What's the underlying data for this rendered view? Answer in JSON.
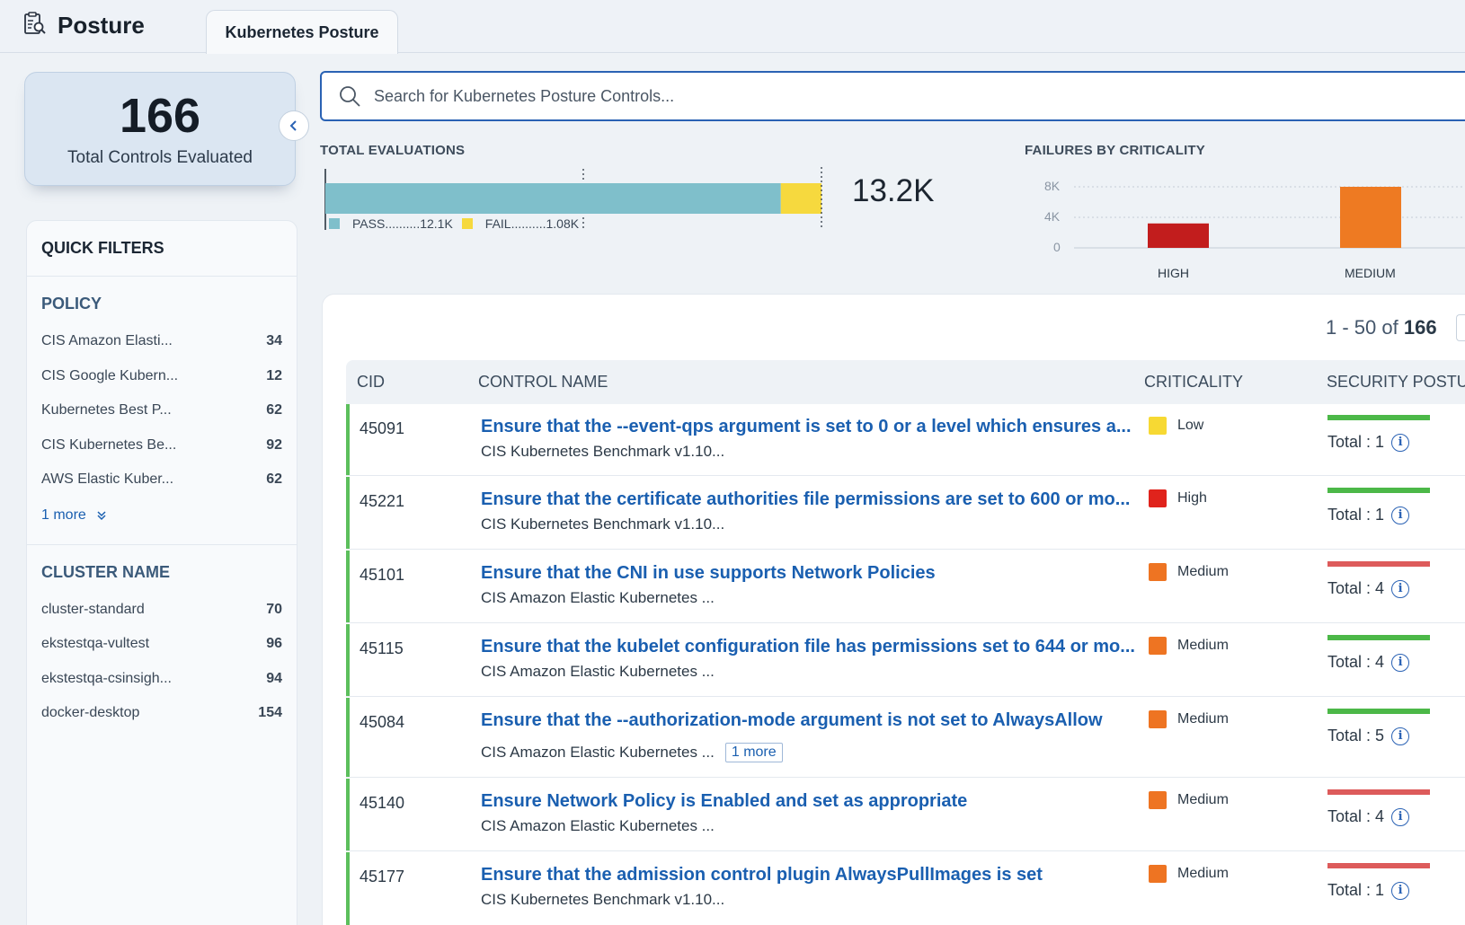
{
  "header": {
    "app_title": "Posture",
    "tab_label": "Kubernetes Posture"
  },
  "kpi": {
    "value": "166",
    "label": "Total Controls Evaluated"
  },
  "quick_filters": {
    "title": "QUICK FILTERS",
    "policy": {
      "title": "POLICY",
      "items": [
        {
          "label": "CIS Amazon Elasti...",
          "count": "34"
        },
        {
          "label": "CIS Google Kubern...",
          "count": "12"
        },
        {
          "label": "Kubernetes Best P...",
          "count": "62"
        },
        {
          "label": "CIS Kubernetes Be...",
          "count": "92"
        },
        {
          "label": "AWS Elastic Kuber...",
          "count": "62"
        }
      ],
      "more": "1 more"
    },
    "cluster": {
      "title": "CLUSTER NAME",
      "items": [
        {
          "label": "cluster-standard",
          "count": "70"
        },
        {
          "label": "ekstestqa-vultest",
          "count": "96"
        },
        {
          "label": "ekstestqa-csinsigh...",
          "count": "94"
        },
        {
          "label": "docker-desktop",
          "count": "154"
        }
      ]
    }
  },
  "search": {
    "placeholder": "Search for Kubernetes Posture Controls..."
  },
  "total_evaluations": {
    "title": "TOTAL EVALUATIONS",
    "total_label": "13.2K",
    "pass_label": "PASS..........12.1K",
    "fail_label": "FAIL..........1.08K",
    "pass_value": 12.1,
    "fail_value": 1.08,
    "colors": {
      "pass": "#7fbfcb",
      "fail": "#f6d93e"
    }
  },
  "chart_data": {
    "type": "bar",
    "title": "FAILURES BY CRITICALITY",
    "categories": [
      "HIGH",
      "MEDIUM"
    ],
    "values": [
      3200,
      8000
    ],
    "y_ticks": [
      "8K",
      "4K",
      "0"
    ],
    "ylim": [
      0,
      8000
    ],
    "colors": [
      "#c21d1d",
      "#ee7a22"
    ],
    "grid": true
  },
  "pager": {
    "range": "1 - 50 of",
    "total": "166"
  },
  "table": {
    "columns": [
      "CID",
      "CONTROL NAME",
      "CRITICALITY",
      "SECURITY POSTURE"
    ],
    "rows": [
      {
        "cid": "45091",
        "name": "Ensure that the --event-qps argument is set to 0 or a level which ensures a...",
        "policy": "CIS Kubernetes Benchmark v1.10...",
        "criticality": "Low",
        "crit_color": "#f7d933",
        "posture": "Total : 1",
        "posture_color": "#4cb848"
      },
      {
        "cid": "45221",
        "name": "Ensure that the certificate authorities file permissions are set to 600 or mo...",
        "policy": "CIS Kubernetes Benchmark v1.10...",
        "criticality": "High",
        "crit_color": "#e0231c",
        "posture": "Total : 1",
        "posture_color": "#4cb848"
      },
      {
        "cid": "45101",
        "name": "Ensure that the CNI in use supports Network Policies",
        "policy": "CIS Amazon Elastic Kubernetes ...",
        "criticality": "Medium",
        "crit_color": "#ee7422",
        "posture": "Total : 4",
        "posture_color": "#dd5b5b"
      },
      {
        "cid": "45115",
        "name": "Ensure that the kubelet configuration file has permissions set to 644 or mo...",
        "policy": "CIS Amazon Elastic Kubernetes ...",
        "criticality": "Medium",
        "crit_color": "#ee7422",
        "posture": "Total : 4",
        "posture_color": "#4cb848"
      },
      {
        "cid": "45084",
        "name": "Ensure that the --authorization-mode argument is not set to AlwaysAllow",
        "policy": "CIS Amazon Elastic Kubernetes ...",
        "more": "1 more",
        "criticality": "Medium",
        "crit_color": "#ee7422",
        "posture": "Total : 5",
        "posture_color": "#4cb848"
      },
      {
        "cid": "45140",
        "name": "Ensure Network Policy is Enabled and set as appropriate",
        "policy": "CIS Amazon Elastic Kubernetes ...",
        "criticality": "Medium",
        "crit_color": "#ee7422",
        "posture": "Total : 4",
        "posture_color": "#dd5b5b"
      },
      {
        "cid": "45177",
        "name": "Ensure that the admission control plugin AlwaysPullImages is set",
        "policy": "CIS Kubernetes Benchmark v1.10...",
        "criticality": "Medium",
        "crit_color": "#ee7422",
        "posture": "Total : 1",
        "posture_color": "#dd5b5b"
      }
    ]
  }
}
